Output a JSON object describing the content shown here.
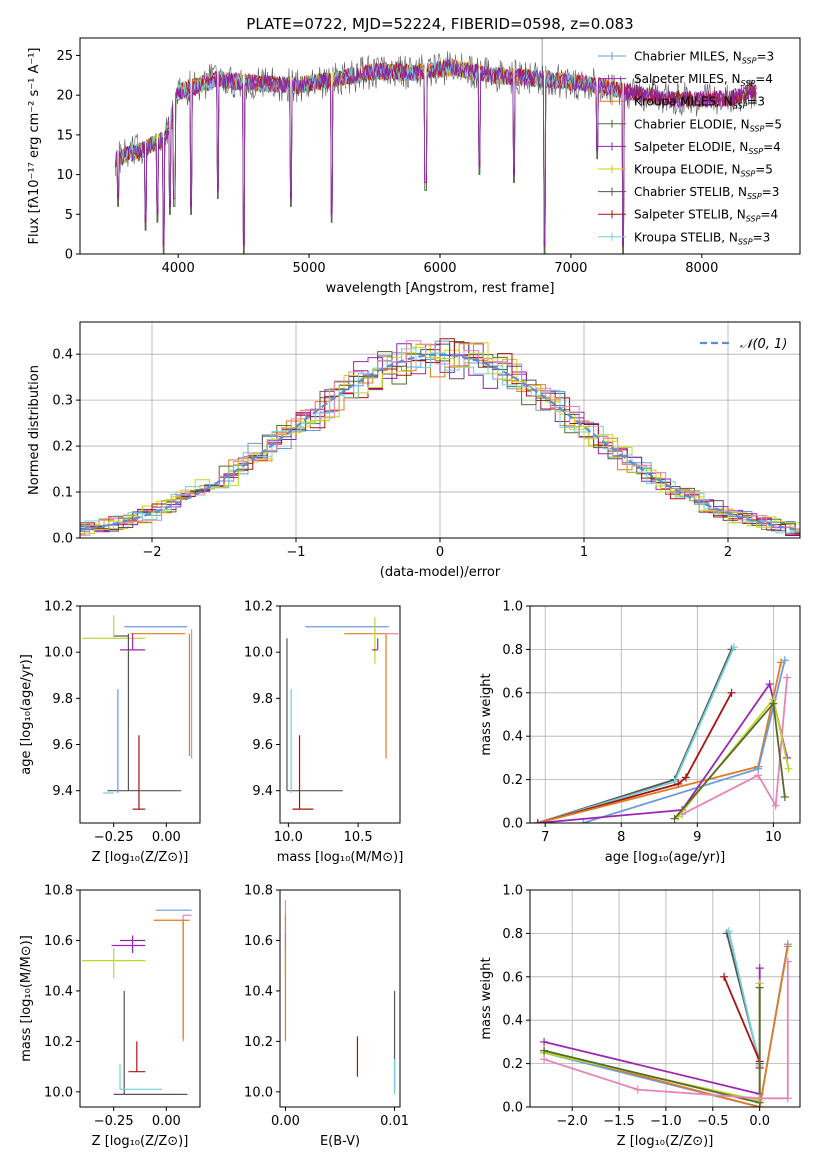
{
  "colors": {
    "chabrier_miles": "#6a9ae0",
    "salpeter_miles": "#9c27b0",
    "kroupa_miles": "#e07b20",
    "chabrier_elodie": "#556b2f",
    "salpeter_elodie": "#8e24aa",
    "kroupa_elodie": "#d4d000",
    "chabrier_stelib": "#555555",
    "salpeter_stelib": "#aa1111",
    "kroupa_stelib": "#70d0d8",
    "pink": "#e884b8",
    "lime": "#bcd62a",
    "normal": "#5b8fd4"
  },
  "chart_data": [
    {
      "id": "spectrum",
      "type": "line",
      "title": "PLATE=0722, MJD=52224, FIBERID=0598, z=0.083",
      "xlabel": "wavelength [Angstrom, rest frame]",
      "ylabel": "Flux [fλ10⁻¹⁷ erg cm⁻² s⁻¹ A⁻¹]",
      "xlim": [
        3250,
        8750
      ],
      "ylim": [
        0,
        27.2
      ],
      "xticks": [
        4000,
        5000,
        6000,
        7000,
        8000
      ],
      "yticks": [
        0,
        5,
        10,
        15,
        20,
        25
      ],
      "legend_position": "top-right",
      "legend": [
        {
          "label": "Chabrier MILES, N_SSP=3",
          "color": "chabrier_miles"
        },
        {
          "label": "Salpeter MILES, N_SSP=4",
          "color": "salpeter_miles"
        },
        {
          "label": "Kroupa MILES, N_SSP=3",
          "color": "kroupa_miles"
        },
        {
          "label": "Chabrier ELODIE, N_SSP=5",
          "color": "chabrier_elodie"
        },
        {
          "label": "Salpeter ELODIE, N_SSP=4",
          "color": "salpeter_elodie"
        },
        {
          "label": "Kroupa ELODIE, N_SSP=5",
          "color": "kroupa_elodie"
        },
        {
          "label": "Chabrier STELIB, N_SSP=3",
          "color": "chabrier_stelib"
        },
        {
          "label": "Salpeter STELIB, N_SSP=4",
          "color": "salpeter_stelib"
        },
        {
          "label": "Kroupa STELIB, N_SSP=3",
          "color": "kroupa_stelib"
        }
      ],
      "data_continuum_points": [
        [
          3520,
          12
        ],
        [
          3700,
          13
        ],
        [
          3900,
          14.5
        ],
        [
          4000,
          20.5
        ],
        [
          4300,
          22
        ],
        [
          4600,
          21.5
        ],
        [
          4900,
          21.2
        ],
        [
          5200,
          22
        ],
        [
          5500,
          23
        ],
        [
          5800,
          22.8
        ],
        [
          6100,
          23.5
        ],
        [
          6400,
          22.5
        ],
        [
          6800,
          22
        ],
        [
          7100,
          21.5
        ],
        [
          7400,
          20.5
        ],
        [
          7800,
          19.5
        ],
        [
          8200,
          19.5
        ],
        [
          8420,
          20.5
        ]
      ]
    },
    {
      "id": "residuals",
      "type": "histogram",
      "xlabel": "(data-model)/error",
      "ylabel": "Normed distribution",
      "xlim": [
        -2.5,
        2.5
      ],
      "ylim": [
        0,
        0.47
      ],
      "xticks": [
        -2,
        -1,
        0,
        1,
        2
      ],
      "yticks": [
        0.0,
        0.1,
        0.2,
        0.3,
        0.4
      ],
      "grid": true,
      "legend_position": "top-right",
      "legend": [
        {
          "label": "𝒩(0, 1)",
          "color": "normal",
          "style": "dashed"
        }
      ],
      "series": [
        {
          "name": "N(0,1)",
          "mu": 0,
          "sigma": 1
        }
      ]
    },
    {
      "id": "age_vs_Z",
      "type": "errorbar",
      "xlabel": "Z [log₁₀(Z/Z⊙)]",
      "ylabel": "age  [log₁₀(age/yr)]",
      "xlim": [
        -0.41,
        0.16
      ],
      "ylim": [
        9.26,
        10.2
      ],
      "xticks": [
        -0.25,
        0.0
      ],
      "yticks": [
        9.4,
        9.6,
        9.8,
        10.0,
        10.2
      ],
      "points": [
        {
          "c": "chabrier_miles",
          "x": 0.0,
          "y": 10.11,
          "xerr": [
            0.2,
            0.1
          ],
          "yerr": [
            0.0,
            0.0
          ]
        },
        {
          "c": "kroupa_miles",
          "x": 0.08,
          "y": 10.08,
          "xerr": [
            0.25,
            0.01
          ],
          "yerr": [
            0.0,
            0.0
          ]
        },
        {
          "c": "chabrier_stelib",
          "x": -0.18,
          "y": 10.07,
          "xerr": [
            0.07,
            0.0
          ],
          "yerr": [
            0.0,
            0.0
          ]
        },
        {
          "c": "lime",
          "x": -0.25,
          "y": 10.06,
          "xerr": [
            0.15,
            0.15
          ],
          "yerr": [
            0.0,
            0.1
          ]
        },
        {
          "c": "salpeter_miles",
          "x": -0.16,
          "y": 10.01,
          "xerr": [
            0.06,
            0.06
          ],
          "yerr": [
            0.0,
            0.07
          ]
        },
        {
          "c": "kroupa_miles",
          "x": 0.11,
          "y": 10.08,
          "xerr": [
            0.0,
            0.0
          ],
          "yerr": [
            0.53,
            0.0
          ]
        },
        {
          "c": "pink",
          "x": 0.12,
          "y": 10.1,
          "xerr": [
            0.0,
            0.0
          ],
          "yerr": [
            0.56,
            0.0
          ]
        },
        {
          "c": "chabrier_stelib",
          "x": -0.18,
          "y": 9.4,
          "xerr": [
            0.1,
            0.25
          ],
          "yerr": [
            0.0,
            0.68
          ]
        },
        {
          "c": "kroupa_stelib",
          "x": -0.25,
          "y": 9.39,
          "xerr": [
            0.05,
            0.0
          ],
          "yerr": [
            0.0,
            0.0
          ]
        },
        {
          "c": "chabrier_miles",
          "x": -0.23,
          "y": 9.39,
          "xerr": [
            0.0,
            0.0
          ],
          "yerr": [
            0.0,
            0.45
          ]
        },
        {
          "c": "salpeter_stelib",
          "x": -0.13,
          "y": 9.32,
          "xerr": [
            0.03,
            0.03
          ],
          "yerr": [
            0.0,
            0.32
          ]
        }
      ]
    },
    {
      "id": "age_vs_mass",
      "type": "errorbar",
      "xlabel": "mass [log₁₀(M/M⊙)]",
      "xlim": [
        9.94,
        10.8
      ],
      "ylim": [
        9.26,
        10.2
      ],
      "xticks": [
        10.0,
        10.5
      ],
      "yticks": [
        9.4,
        9.6,
        9.8,
        10.0,
        10.2
      ],
      "points": [
        {
          "c": "chabrier_miles",
          "x": 10.72,
          "y": 10.11,
          "xerr": [
            0.6,
            0.0
          ],
          "yerr": [
            0.0,
            0.0
          ]
        },
        {
          "c": "kroupa_miles",
          "x": 10.7,
          "y": 10.08,
          "xerr": [
            0.3,
            0.0
          ],
          "yerr": [
            0.54,
            0.0
          ]
        },
        {
          "c": "pink",
          "x": 10.74,
          "y": 10.08,
          "xerr": [
            0.05,
            0.05
          ],
          "yerr": [
            0.0,
            0.0
          ]
        },
        {
          "c": "lime",
          "x": 10.62,
          "y": 10.1,
          "xerr": [
            0.0,
            0.0
          ],
          "yerr": [
            0.15,
            0.05
          ]
        },
        {
          "c": "salpeter_miles",
          "x": 10.64,
          "y": 10.01,
          "xerr": [
            0.04,
            0.0
          ],
          "yerr": [
            0.0,
            0.05
          ]
        },
        {
          "c": "chabrier_stelib",
          "x": 9.99,
          "y": 9.4,
          "xerr": [
            0.0,
            0.4
          ],
          "yerr": [
            0.0,
            0.66
          ]
        },
        {
          "c": "kroupa_stelib",
          "x": 10.02,
          "y": 9.39,
          "xerr": [
            0.0,
            0.0
          ],
          "yerr": [
            0.0,
            0.45
          ]
        },
        {
          "c": "salpeter_stelib",
          "x": 10.08,
          "y": 9.32,
          "xerr": [
            0.05,
            0.1
          ],
          "yerr": [
            0.0,
            0.32
          ]
        }
      ]
    },
    {
      "id": "weight_vs_age",
      "type": "line",
      "xlabel": "age  [log₁₀(age/yr)]",
      "ylabel": "mass weight",
      "xlim": [
        6.8,
        10.35
      ],
      "ylim": [
        0,
        1.0
      ],
      "xticks": [
        7,
        8,
        9,
        10
      ],
      "yticks": [
        0.0,
        0.2,
        0.4,
        0.6,
        0.8,
        1.0
      ],
      "grid": true,
      "series": [
        {
          "c": "chabrier_stelib",
          "points": [
            [
              6.9,
              0.0
            ],
            [
              8.7,
              0.2
            ],
            [
              9.45,
              0.8
            ]
          ]
        },
        {
          "c": "kroupa_stelib",
          "points": [
            [
              6.9,
              0.0
            ],
            [
              8.7,
              0.19
            ],
            [
              9.48,
              0.81
            ]
          ]
        },
        {
          "c": "salpeter_stelib",
          "points": [
            [
              6.9,
              0.0
            ],
            [
              8.75,
              0.18
            ],
            [
              8.85,
              0.21
            ],
            [
              9.45,
              0.6
            ]
          ]
        },
        {
          "c": "kroupa_miles",
          "points": [
            [
              6.9,
              0.0
            ],
            [
              9.8,
              0.26
            ],
            [
              10.1,
              0.74
            ]
          ]
        },
        {
          "c": "chabrier_miles",
          "points": [
            [
              7.5,
              0.0
            ],
            [
              9.8,
              0.25
            ],
            [
              10.15,
              0.75
            ]
          ]
        },
        {
          "c": "salpeter_miles",
          "points": [
            [
              6.9,
              0.0
            ],
            [
              8.8,
              0.06
            ],
            [
              9.95,
              0.64
            ],
            [
              10.18,
              0.3
            ]
          ]
        },
        {
          "c": "pink",
          "points": [
            [
              8.8,
              0.04
            ],
            [
              9.8,
              0.22
            ],
            [
              10.03,
              0.08
            ],
            [
              10.18,
              0.67
            ]
          ]
        },
        {
          "c": "lime",
          "points": [
            [
              8.75,
              0.03
            ],
            [
              10.0,
              0.57
            ],
            [
              10.2,
              0.25
            ]
          ]
        },
        {
          "c": "chabrier_elodie",
          "points": [
            [
              8.7,
              0.02
            ],
            [
              10.0,
              0.55
            ],
            [
              10.15,
              0.12
            ]
          ]
        }
      ]
    },
    {
      "id": "mass_vs_Z",
      "type": "errorbar",
      "xlabel": "Z [log₁₀(Z/Z⊙)]",
      "ylabel": "mass [log₁₀(M/M⊙)]",
      "xlim": [
        -0.41,
        0.16
      ],
      "ylim": [
        9.94,
        10.8
      ],
      "xticks": [
        -0.25,
        0.0
      ],
      "yticks": [
        10.0,
        10.2,
        10.4,
        10.6,
        10.8
      ],
      "points": [
        {
          "c": "chabrier_miles",
          "x": 0.05,
          "y": 10.72,
          "xerr": [
            0.1,
            0.07
          ],
          "yerr": [
            0.0,
            0.0
          ]
        },
        {
          "c": "pink",
          "x": 0.08,
          "y": 10.7,
          "xerr": [
            0.0,
            0.04
          ],
          "yerr": [
            0.5,
            0.0
          ]
        },
        {
          "c": "kroupa_miles",
          "x": 0.08,
          "y": 10.68,
          "xerr": [
            0.14,
            0.03
          ],
          "yerr": [
            0.47,
            0.0
          ]
        },
        {
          "c": "salpeter_miles",
          "x": -0.18,
          "y": 10.58,
          "xerr": [
            0.08,
            0.08
          ],
          "yerr": [
            0.0,
            0.0
          ]
        },
        {
          "c": "salpeter_elodie",
          "x": -0.16,
          "y": 10.6,
          "xerr": [
            0.06,
            0.06
          ],
          "yerr": [
            0.05,
            0.02
          ]
        },
        {
          "c": "lime",
          "x": -0.25,
          "y": 10.52,
          "xerr": [
            0.15,
            0.15
          ],
          "yerr": [
            0.07,
            0.05
          ]
        },
        {
          "c": "chabrier_stelib",
          "x": -0.2,
          "y": 9.99,
          "xerr": [
            0.05,
            0.3
          ],
          "yerr": [
            0.0,
            0.41
          ]
        },
        {
          "c": "kroupa_stelib",
          "x": -0.22,
          "y": 10.01,
          "xerr": [
            0.0,
            0.2
          ],
          "yerr": [
            0.0,
            0.1
          ]
        },
        {
          "c": "salpeter_stelib",
          "x": -0.14,
          "y": 10.08,
          "xerr": [
            0.04,
            0.04
          ],
          "yerr": [
            0.0,
            0.12
          ]
        }
      ]
    },
    {
      "id": "mass_vs_ebv",
      "type": "errorbar",
      "xlabel": "E(B-V)",
      "xlim": [
        -0.0005,
        0.0105
      ],
      "ylim": [
        9.94,
        10.8
      ],
      "xticks": [
        0.0,
        0.01
      ],
      "yticks": [
        10.0,
        10.2,
        10.4,
        10.6,
        10.8
      ],
      "points": [
        {
          "c": "pink",
          "x": 0.0,
          "y": 10.72,
          "xerr": [
            0.0,
            0.0
          ],
          "yerr": [
            0.04,
            0.04
          ]
        },
        {
          "c": "salpeter_miles",
          "x": 0.0,
          "y": 10.6,
          "xerr": [
            0.0,
            0.0
          ],
          "yerr": [
            0.03,
            0.03
          ]
        },
        {
          "c": "lime",
          "x": 0.0,
          "y": 10.52,
          "xerr": [
            0.0,
            0.0
          ],
          "yerr": [
            0.07,
            0.05
          ]
        },
        {
          "c": "kroupa_miles",
          "x": 0.0,
          "y": 10.4,
          "xerr": [
            0.0,
            0.0
          ],
          "yerr": [
            0.2,
            0.3
          ]
        },
        {
          "c": "salpeter_stelib",
          "x": 0.0066,
          "y": 10.14,
          "xerr": [
            0.0,
            0.0
          ],
          "yerr": [
            0.08,
            0.08
          ]
        },
        {
          "c": "chabrier_stelib",
          "x": 0.01,
          "y": 10.2,
          "xerr": [
            0.0,
            0.0
          ],
          "yerr": [
            0.2,
            0.2
          ]
        },
        {
          "c": "kroupa_stelib",
          "x": 0.01,
          "y": 10.06,
          "xerr": [
            0.0,
            0.0
          ],
          "yerr": [
            0.07,
            0.07
          ]
        }
      ]
    },
    {
      "id": "weight_vs_Z",
      "type": "line",
      "xlabel": "Z [log₁₀(Z/Z⊙)]",
      "ylabel": "mass weight",
      "xlim": [
        -2.45,
        0.43
      ],
      "ylim": [
        0,
        1.0
      ],
      "xticks": [
        -2.0,
        -1.5,
        -1.0,
        -0.5,
        0.0
      ],
      "yticks": [
        0.0,
        0.2,
        0.4,
        0.6,
        0.8,
        1.0
      ],
      "grid": true,
      "series": [
        {
          "c": "chabrier_stelib",
          "points": [
            [
              -0.35,
              0.8
            ],
            [
              0.0,
              0.2
            ]
          ]
        },
        {
          "c": "kroupa_stelib",
          "points": [
            [
              -0.33,
              0.81
            ],
            [
              0.0,
              0.19
            ]
          ]
        },
        {
          "c": "salpeter_stelib",
          "points": [
            [
              -0.38,
              0.6
            ],
            [
              0.0,
              0.21
            ],
            [
              0.0,
              0.18
            ]
          ]
        },
        {
          "c": "salpeter_miles",
          "points": [
            [
              -2.3,
              0.3
            ],
            [
              0.0,
              0.06
            ],
            [
              0.0,
              0.64
            ]
          ]
        },
        {
          "c": "chabrier_miles",
          "points": [
            [
              -2.3,
              0.25
            ],
            [
              0.0,
              0.0
            ],
            [
              0.3,
              0.75
            ]
          ]
        },
        {
          "c": "kroupa_miles",
          "points": [
            [
              -2.3,
              0.26
            ],
            [
              0.0,
              0.0
            ],
            [
              0.3,
              0.74
            ]
          ]
        },
        {
          "c": "lime",
          "points": [
            [
              -2.3,
              0.25
            ],
            [
              0.0,
              0.03
            ],
            [
              0.0,
              0.57
            ]
          ]
        },
        {
          "c": "chabrier_elodie",
          "points": [
            [
              -2.3,
              0.26
            ],
            [
              0.0,
              0.02
            ],
            [
              0.0,
              0.55
            ]
          ]
        },
        {
          "c": "pink",
          "points": [
            [
              -2.3,
              0.22
            ],
            [
              -1.3,
              0.08
            ],
            [
              0.0,
              0.04
            ],
            [
              0.3,
              0.04
            ],
            [
              0.3,
              0.67
            ]
          ]
        }
      ]
    }
  ]
}
